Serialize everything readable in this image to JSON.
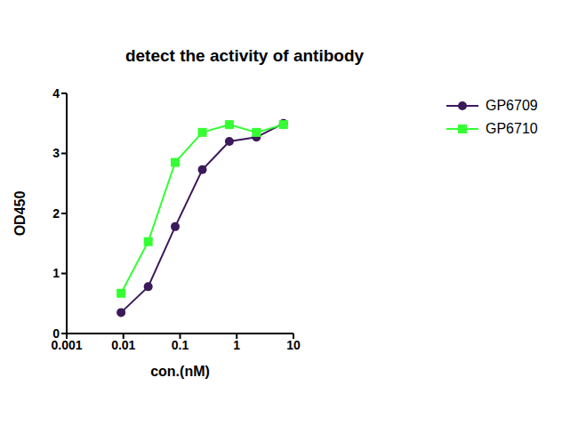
{
  "chart_data": {
    "type": "line",
    "title": "detect the activity of antibody",
    "x_label": "con.(nM)",
    "y_label": "OD450",
    "x": [
      0.0091,
      0.0274,
      0.082,
      0.247,
      0.74,
      2.22,
      6.67
    ],
    "series": [
      {
        "name": "GP6709",
        "color": "#3b1a5a",
        "marker": "circle",
        "values": [
          0.35,
          0.78,
          1.78,
          2.73,
          3.2,
          3.27,
          3.5
        ]
      },
      {
        "name": "GP6710",
        "color": "#33ff33",
        "marker": "square",
        "values": [
          0.67,
          1.53,
          2.85,
          3.35,
          3.48,
          3.35,
          3.48
        ]
      }
    ],
    "log": "x",
    "xlim": [
      0.001,
      10
    ],
    "xticks": [
      0.001,
      0.01,
      0.1,
      1,
      10
    ],
    "ylim": [
      0,
      4
    ],
    "yticks": [
      0,
      1,
      2,
      3,
      4
    ],
    "grid": false,
    "legend": "upper right"
  }
}
